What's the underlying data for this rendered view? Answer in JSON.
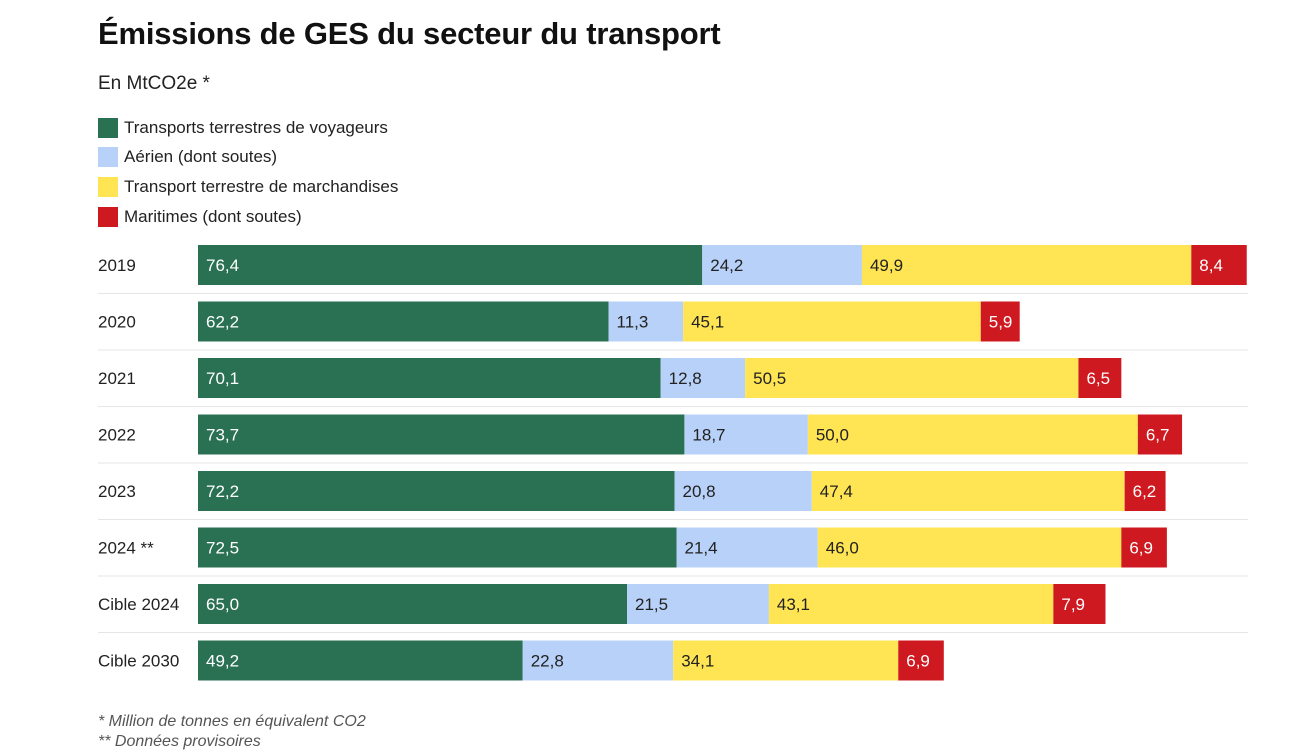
{
  "title": "Émissions de GES du secteur du transport",
  "subtitle": "En MtCO2e *",
  "footnotes": [
    "* Million de tonnes en équivalent CO2",
    "** Données provisoires"
  ],
  "chart_data": {
    "type": "bar",
    "orientation": "horizontal",
    "stacked": true,
    "title": "Émissions de GES du secteur du transport",
    "subtitle": "En MtCO2e *",
    "legend_position": "top-left",
    "grid": false,
    "categories": [
      "2019",
      "2020",
      "2021",
      "2022",
      "2023",
      "2024 **",
      "Cible 2024",
      "Cible 2030"
    ],
    "series": [
      {
        "name": "Transports terrestres de voyageurs",
        "color": "#2a7153",
        "label_color": "#ffffff",
        "values": [
          76.4,
          62.2,
          70.1,
          73.7,
          72.2,
          72.5,
          65.0,
          49.2
        ],
        "labels": [
          "76,4",
          "62,2",
          "70,1",
          "73,7",
          "72,2",
          "72,5",
          "65,0",
          "49,2"
        ]
      },
      {
        "name": "Aérien (dont soutes)",
        "color": "#b8d1f8",
        "label_color": "#222222",
        "values": [
          24.2,
          11.3,
          12.8,
          18.7,
          20.8,
          21.4,
          21.5,
          22.8
        ],
        "labels": [
          "24,2",
          "11,3",
          "12,8",
          "18,7",
          "20,8",
          "21,4",
          "21,5",
          "22,8"
        ]
      },
      {
        "name": "Transport terrestre de marchandises",
        "color": "#ffe453",
        "label_color": "#222222",
        "values": [
          49.9,
          45.1,
          50.5,
          50.0,
          47.4,
          46.0,
          43.1,
          34.1
        ],
        "labels": [
          "49,9",
          "45,1",
          "50,5",
          "50,0",
          "47,4",
          "46,0",
          "43,1",
          "34,1"
        ]
      },
      {
        "name": "Maritimes (dont soutes)",
        "color": "#cf1920",
        "label_color": "#ffffff",
        "values": [
          8.4,
          5.9,
          6.5,
          6.7,
          6.2,
          6.9,
          7.9,
          6.9
        ],
        "labels": [
          "8,4",
          "5,9",
          "6,5",
          "6,7",
          "6,2",
          "6,9",
          "7,9",
          "6,9"
        ]
      }
    ]
  }
}
